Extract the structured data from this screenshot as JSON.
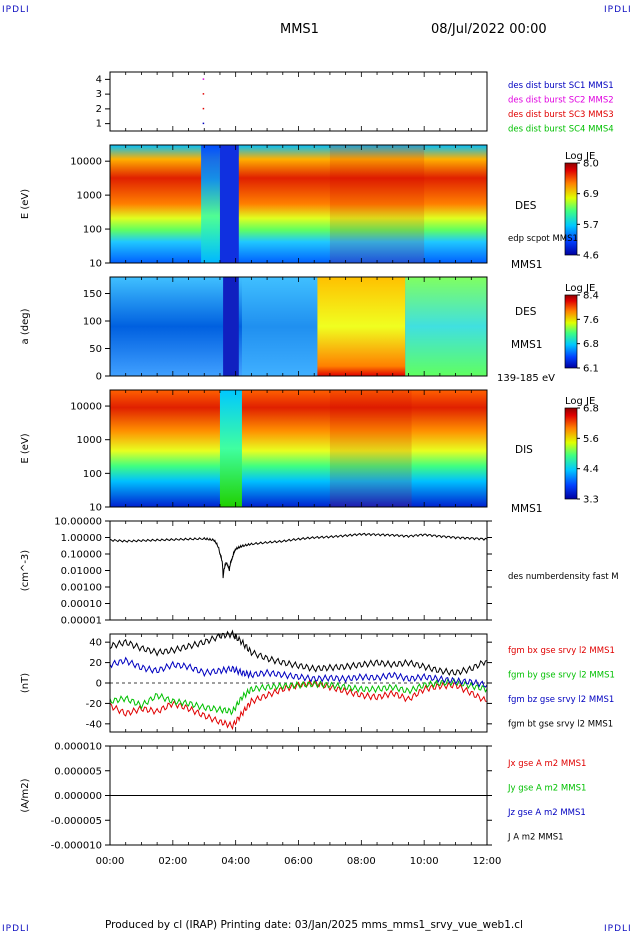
{
  "header": {
    "corner_label": "IPDLI",
    "spacecraft": "MMS1",
    "date": "08/Jul/2022 00:00"
  },
  "footer": {
    "text": "Produced by cl (IRAP)   Printing date: 03/Jan/2025   mms_mms1_srvy_vue_web1.cl"
  },
  "time_axis": {
    "ticks": [
      "00:00",
      "02:00",
      "04:00",
      "06:00",
      "08:00",
      "10:00",
      "12:00"
    ]
  },
  "colors": {
    "red": "#e00000",
    "green": "#00c000",
    "blue": "#0000c0",
    "magenta": "#e000e0",
    "black": "#000000"
  },
  "chart_data": [
    {
      "type": "scatter",
      "panel": "burst",
      "yticks": [
        "4",
        "3",
        "2",
        "1"
      ],
      "ylim": [
        0.5,
        4.5
      ],
      "legend": [
        {
          "text": "des dist burst SC1 MMS1",
          "color": "#0000c0"
        },
        {
          "text": "des dist burst SC2 MMS2",
          "color": "#e000e0"
        },
        {
          "text": "des dist burst SC3 MMS3",
          "color": "#e00000"
        },
        {
          "text": "des dist burst SC4 MMS4",
          "color": "#00c000"
        }
      ],
      "points": [
        {
          "x_hours": 2.95,
          "y": 3,
          "color": "#e00000"
        },
        {
          "x_hours": 2.95,
          "y": 2,
          "color": "#e00000"
        },
        {
          "x_hours": 2.95,
          "y": 1,
          "color": "#0000c0"
        },
        {
          "x_hours": 2.95,
          "y": 4,
          "color": "#e000e0"
        }
      ]
    },
    {
      "type": "heatmap",
      "panel": "des_energy",
      "ylabel": "E (eV)",
      "yticks": [
        "10000",
        "1000",
        "100",
        "10"
      ],
      "ylim": [
        10,
        30000
      ],
      "yscale": "log",
      "right_labels": [
        "DES",
        "edp scpot MMS1",
        "MMS1"
      ],
      "colorbar": {
        "title": "Log JE",
        "ticks": [
          "8.0",
          "6.9",
          "5.7",
          "4.6"
        ],
        "range": [
          4.6,
          8.0
        ]
      }
    },
    {
      "type": "heatmap",
      "panel": "des_pitch",
      "ylabel": "a (deg)",
      "yticks": [
        "150",
        "100",
        "50",
        "0"
      ],
      "ylim": [
        0,
        180
      ],
      "right_labels": [
        "DES",
        "MMS1",
        "139-185 eV"
      ],
      "colorbar": {
        "title": "Log JE",
        "ticks": [
          "8.4",
          "7.6",
          "6.8",
          "6.1"
        ],
        "range": [
          6.1,
          8.4
        ]
      }
    },
    {
      "type": "heatmap",
      "panel": "dis_energy",
      "ylabel": "E (eV)",
      "yticks": [
        "10000",
        "1000",
        "100",
        "10"
      ],
      "ylim": [
        10,
        30000
      ],
      "yscale": "log",
      "right_labels": [
        "DIS",
        "MMS1"
      ],
      "colorbar": {
        "title": "Log JE",
        "ticks": [
          "6.8",
          "5.6",
          "4.4",
          "3.3"
        ],
        "range": [
          3.3,
          6.8
        ]
      }
    },
    {
      "type": "line",
      "panel": "density",
      "ylabel": "(cm^-3)",
      "yscale": "log",
      "yticks": [
        "10.00000",
        "1.00000",
        "0.10000",
        "0.01000",
        "0.00100",
        "0.00010",
        "0.00001"
      ],
      "ylim": [
        1e-05,
        10
      ],
      "series": [
        {
          "name": "des numberdensity fast M",
          "color": "#000000",
          "x_hours": [
            0,
            0.5,
            1,
            1.5,
            2,
            2.5,
            3,
            3.3,
            3.5,
            3.6,
            3.7,
            3.8,
            3.9,
            4.0,
            4.2,
            4.5,
            5,
            5.5,
            6,
            6.5,
            7,
            7.5,
            8,
            8.5,
            9,
            9.5,
            10,
            10.5,
            11,
            11.5,
            12
          ],
          "values": [
            0.7,
            0.6,
            0.65,
            0.7,
            0.75,
            0.8,
            0.85,
            0.7,
            0.1,
            0.003,
            0.03,
            0.01,
            0.06,
            0.2,
            0.3,
            0.4,
            0.5,
            0.6,
            0.8,
            1.0,
            1.1,
            1.3,
            1.6,
            1.5,
            1.4,
            1.2,
            1.5,
            1.2,
            1.0,
            0.9,
            0.8
          ]
        }
      ]
    },
    {
      "type": "line",
      "panel": "fgm",
      "ylabel": "(nT)",
      "yticks": [
        "40",
        "20",
        "0",
        "-20",
        "-40"
      ],
      "ylim": [
        -48,
        48
      ],
      "series": [
        {
          "name": "fgm bx gse srvy l2 MMS1",
          "color": "#e00000",
          "x_hours": [
            0,
            0.5,
            1,
            1.5,
            2,
            2.5,
            3,
            3.5,
            3.9,
            4.2,
            4.5,
            5,
            5.5,
            6,
            6.5,
            7,
            7.5,
            8,
            8.5,
            9,
            9.5,
            10,
            10.5,
            11,
            11.5,
            12
          ],
          "values": [
            -22,
            -30,
            -25,
            -28,
            -20,
            -25,
            -32,
            -38,
            -42,
            -30,
            -18,
            -12,
            -6,
            -2,
            0,
            -4,
            -8,
            -12,
            -14,
            -10,
            -16,
            -6,
            -3,
            -2,
            -10,
            -18
          ]
        },
        {
          "name": "fgm by gse srvy l2 MMS1",
          "color": "#00c000",
          "x_hours": [
            0,
            0.5,
            1,
            1.5,
            2,
            2.5,
            3,
            3.5,
            3.9,
            4.2,
            4.5,
            5,
            5.5,
            6,
            6.5,
            7,
            7.5,
            8,
            8.5,
            9,
            9.5,
            10,
            10.5,
            11,
            11.5,
            12
          ],
          "values": [
            -18,
            -15,
            -22,
            -12,
            -18,
            -20,
            -24,
            -26,
            -28,
            -14,
            -6,
            -4,
            -3,
            -2,
            -1,
            -2,
            -4,
            -6,
            -6,
            -4,
            -8,
            -2,
            0,
            1,
            -3,
            -6
          ]
        },
        {
          "name": "fgm bz gse srvy l2 MMS1",
          "color": "#0000c0",
          "x_hours": [
            0,
            0.5,
            1,
            1.5,
            2,
            2.5,
            3,
            3.5,
            3.9,
            4.2,
            4.5,
            5,
            5.5,
            6,
            6.5,
            7,
            7.5,
            8,
            8.5,
            9,
            9.5,
            10,
            10.5,
            11,
            11.5,
            12
          ],
          "values": [
            18,
            22,
            15,
            12,
            18,
            16,
            10,
            12,
            14,
            10,
            8,
            10,
            8,
            6,
            4,
            5,
            4,
            6,
            5,
            8,
            4,
            6,
            4,
            2,
            1,
            -2
          ]
        },
        {
          "name": "fgm bt gse srvy l2 MMS1",
          "color": "#000000",
          "x_hours": [
            0,
            0.5,
            1,
            1.5,
            2,
            2.5,
            3,
            3.5,
            3.9,
            4.2,
            4.5,
            5,
            5.5,
            6,
            6.5,
            7,
            7.5,
            8,
            8.5,
            9,
            9.5,
            10,
            10.5,
            11,
            11.5,
            12
          ],
          "values": [
            36,
            40,
            34,
            30,
            32,
            36,
            40,
            46,
            48,
            40,
            30,
            24,
            20,
            17,
            14,
            15,
            16,
            18,
            20,
            18,
            20,
            16,
            12,
            10,
            14,
            22
          ]
        }
      ]
    },
    {
      "type": "line",
      "panel": "current",
      "ylabel": "(A/m2)",
      "yticks": [
        "0.000010",
        "0.000005",
        "0.000000",
        "-0.000005",
        "-0.000010"
      ],
      "ylim": [
        -1e-05,
        1e-05
      ],
      "series": [
        {
          "name": "Jx gse A m2 MMS1",
          "color": "#e00000",
          "x_hours": [
            0,
            12
          ],
          "values": [
            0,
            0
          ]
        },
        {
          "name": "Jy gse A m2 MMS1",
          "color": "#00c000",
          "x_hours": [
            0,
            12
          ],
          "values": [
            0,
            0
          ]
        },
        {
          "name": "Jz gse A m2 MMS1",
          "color": "#0000c0",
          "x_hours": [
            0,
            12
          ],
          "values": [
            0,
            0
          ]
        },
        {
          "name": "J A m2 MMS1",
          "color": "#000000",
          "x_hours": [
            0,
            12
          ],
          "values": [
            0,
            0
          ]
        }
      ]
    }
  ]
}
